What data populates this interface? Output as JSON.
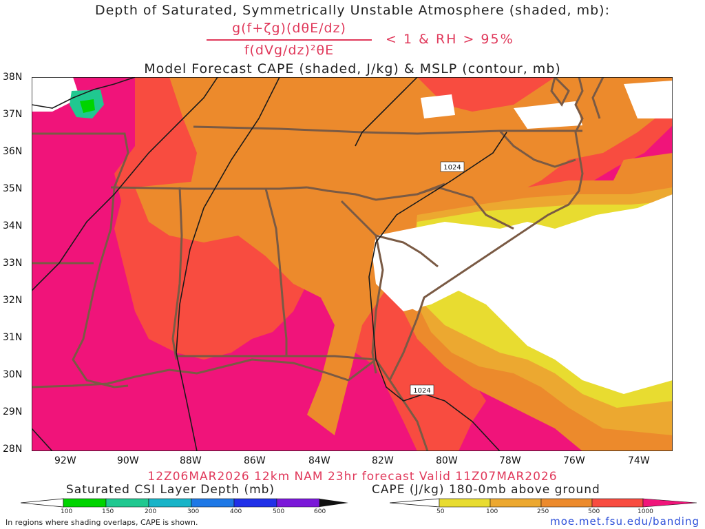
{
  "title": {
    "line1": "Depth of Saturated, Symmetrically Unstable Atmosphere (shaded, mb):",
    "numerator": "g(f+ζg)(dθE/dz)",
    "denominator": "f(dVg/dz)²θE",
    "condition": "< 1 & RH > 95%",
    "line3": "Model Forecast CAPE (shaded, J/kg) & MSLP (contour, mb)"
  },
  "axes": {
    "lat_labels": [
      "38N",
      "37N",
      "36N",
      "35N",
      "34N",
      "33N",
      "32N",
      "31N",
      "30N",
      "29N",
      "28N"
    ],
    "lon_labels": [
      "92W",
      "90W",
      "88W",
      "86W",
      "84W",
      "82W",
      "80W",
      "78W",
      "76W",
      "74W"
    ]
  },
  "contours": {
    "isobar_label": "1024",
    "isobar_value_mb": 1024
  },
  "valid_line": "12Z06MAR2026 12km NAM 23hr forecast Valid 11Z07MAR2026",
  "colorbars": {
    "csi": {
      "title": "Saturated CSI Layer Depth (mb)",
      "ticks": [
        "100",
        "150",
        "200",
        "300",
        "400",
        "500",
        "600"
      ],
      "colors": [
        "#00d400",
        "#20c890",
        "#18b4c8",
        "#1e78e6",
        "#2030e8",
        "#7a18d8"
      ]
    },
    "cape": {
      "title": "CAPE (J/kg) 180-0mb above ground",
      "ticks": [
        "50",
        "100",
        "250",
        "500",
        "1000"
      ],
      "colors": [
        "#e8dc30",
        "#eca830",
        "#ec8a2c",
        "#f84c40",
        "#f0147a"
      ]
    }
  },
  "footer": {
    "note": "In regions where shading overlaps, CAPE is shown.",
    "credit": "moe.met.fsu.edu/banding"
  },
  "colors": {
    "cape_50": "#e8dc30",
    "cape_100": "#eca830",
    "cape_250": "#ec8a2c",
    "cape_500": "#f84c40",
    "cape_1000": "#f0147a",
    "boundary": "#7a5a44",
    "isobar": "#1a1a1a",
    "title_red": "#e0385a"
  }
}
